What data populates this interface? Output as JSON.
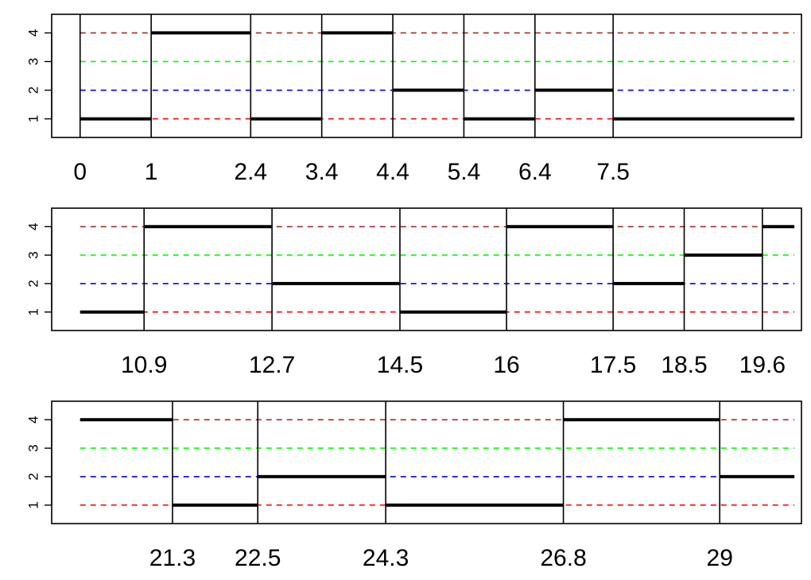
{
  "chart_data": {
    "type": "line",
    "description_free": true,
    "y_ticks": [
      "1",
      "2",
      "3",
      "4"
    ],
    "ylim": [
      0.35,
      4.65
    ],
    "reference_lines": [
      {
        "y": 1,
        "color": "#ff0000",
        "style": "dashed"
      },
      {
        "y": 2,
        "color": "#0000ff",
        "style": "dashed"
      },
      {
        "y": 3,
        "color": "#00ff00",
        "style": "dashed"
      },
      {
        "y": 4,
        "color": "#a52a2a",
        "style": "dashed"
      }
    ],
    "panels": [
      {
        "xlim": [
          -0.4,
          10.15
        ],
        "x_start": 0,
        "x_end": 10.05,
        "boundaries": [
          0,
          1,
          2.4,
          3.4,
          4.4,
          5.4,
          6.4,
          7.5
        ],
        "boundary_labels": [
          "0",
          "1",
          "2.4",
          "3.4",
          "4.4",
          "5.4",
          "6.4",
          "7.5"
        ],
        "segments": [
          {
            "x0": 0,
            "x1": 1,
            "y": 1
          },
          {
            "x0": 1,
            "x1": 2.4,
            "y": 4
          },
          {
            "x0": 2.4,
            "x1": 3.4,
            "y": 1
          },
          {
            "x0": 3.4,
            "x1": 4.4,
            "y": 4
          },
          {
            "x0": 4.4,
            "x1": 5.4,
            "y": 2
          },
          {
            "x0": 5.4,
            "x1": 6.4,
            "y": 1
          },
          {
            "x0": 6.4,
            "x1": 7.5,
            "y": 2
          },
          {
            "x0": 7.5,
            "x1": 10.05,
            "y": 1
          }
        ]
      },
      {
        "xlim": [
          9.6,
          20.15
        ],
        "x_start": 10,
        "x_end": 20.05,
        "boundaries": [
          10.9,
          12.7,
          14.5,
          16,
          17.5,
          18.5,
          19.6
        ],
        "boundary_labels": [
          "10.9",
          "12.7",
          "14.5",
          "16",
          "17.5",
          "18.5",
          "19.6"
        ],
        "segments": [
          {
            "x0": 10,
            "x1": 10.9,
            "y": 1
          },
          {
            "x0": 10.9,
            "x1": 12.7,
            "y": 4
          },
          {
            "x0": 12.7,
            "x1": 14.5,
            "y": 2
          },
          {
            "x0": 14.5,
            "x1": 16,
            "y": 1
          },
          {
            "x0": 16,
            "x1": 17.5,
            "y": 4
          },
          {
            "x0": 17.5,
            "x1": 18.5,
            "y": 2
          },
          {
            "x0": 18.5,
            "x1": 19.6,
            "y": 3
          },
          {
            "x0": 19.6,
            "x1": 20.05,
            "y": 4
          }
        ]
      },
      {
        "xlim": [
          19.6,
          30.15
        ],
        "x_start": 20,
        "x_end": 30.05,
        "boundaries": [
          21.3,
          22.5,
          24.3,
          26.8,
          29
        ],
        "boundary_labels": [
          "21.3",
          "22.5",
          "24.3",
          "26.8",
          "29"
        ],
        "segments": [
          {
            "x0": 20,
            "x1": 21.3,
            "y": 4
          },
          {
            "x0": 21.3,
            "x1": 22.5,
            "y": 1
          },
          {
            "x0": 22.5,
            "x1": 24.3,
            "y": 2
          },
          {
            "x0": 24.3,
            "x1": 26.8,
            "y": 1
          },
          {
            "x0": 26.8,
            "x1": 29,
            "y": 4
          },
          {
            "x0": 29,
            "x1": 30.05,
            "y": 2
          }
        ]
      }
    ]
  }
}
